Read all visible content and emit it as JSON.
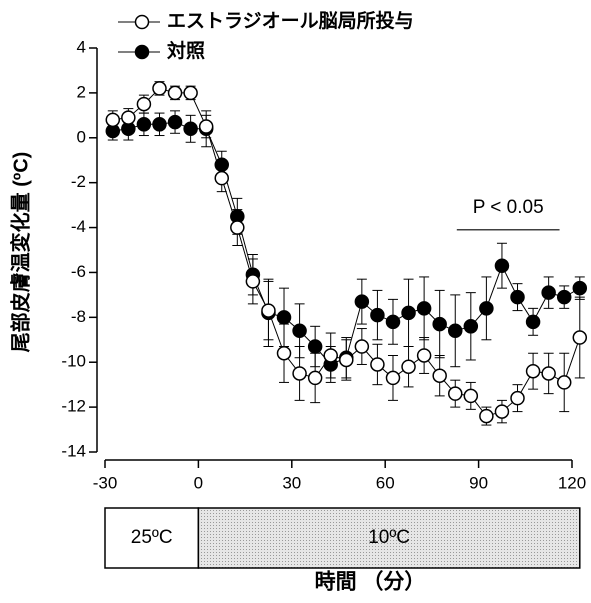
{
  "chart_data": {
    "type": "line",
    "xlabel": "時間 （分）",
    "ylabel": "尾部皮膚温変化量 (ºC)",
    "x": [
      -27.5,
      -22.5,
      -17.5,
      -12.5,
      -7.5,
      -2.5,
      2.5,
      7.5,
      12.5,
      17.5,
      22.5,
      27.5,
      32.5,
      37.5,
      42.5,
      47.5,
      52.5,
      57.5,
      62.5,
      67.5,
      72.5,
      77.5,
      82.5,
      87.5,
      92.5,
      97.5,
      102.5,
      107.5,
      112.5,
      117.5,
      122.5
    ],
    "series": [
      {
        "name": "エストラジオール脳局所投与",
        "color": "#000000",
        "marker_fill": "#ffffff",
        "values": [
          0.8,
          0.9,
          1.5,
          2.2,
          2.0,
          2.0,
          0.5,
          -1.8,
          -4.0,
          -6.4,
          -7.7,
          -9.6,
          -10.5,
          -10.7,
          -9.7,
          -9.9,
          -9.3,
          -10.1,
          -10.7,
          -10.2,
          -9.7,
          -10.6,
          -11.4,
          -11.5,
          -12.4,
          -12.2,
          -11.6,
          -10.4,
          -10.5,
          -10.9,
          -8.9
        ],
        "errors": [
          0.4,
          0.4,
          0.4,
          0.3,
          0.3,
          0.3,
          0.5,
          0.6,
          0.8,
          1.0,
          1.3,
          1.3,
          1.2,
          1.1,
          1.0,
          0.9,
          0.8,
          0.9,
          1.0,
          0.9,
          0.8,
          0.9,
          0.6,
          0.6,
          0.4,
          0.5,
          0.6,
          0.8,
          0.9,
          1.3,
          1.8
        ]
      },
      {
        "name": "対照",
        "color": "#000000",
        "marker_fill": "#000000",
        "values": [
          0.3,
          0.4,
          0.6,
          0.6,
          0.7,
          0.4,
          0.4,
          -1.2,
          -3.5,
          -6.1,
          -7.8,
          -8.0,
          -8.6,
          -9.3,
          -10.1,
          -9.8,
          -7.3,
          -7.9,
          -8.2,
          -7.8,
          -7.6,
          -8.3,
          -8.6,
          -8.4,
          -7.6,
          -5.7,
          -7.1,
          -8.2,
          -6.9,
          -7.1,
          -6.7
        ],
        "errors": [
          0.4,
          0.5,
          0.5,
          0.5,
          0.5,
          0.6,
          0.8,
          0.6,
          0.8,
          0.9,
          1.5,
          1.3,
          1.2,
          0.9,
          0.8,
          0.9,
          1.0,
          1.1,
          1.0,
          1.5,
          1.4,
          1.5,
          1.6,
          1.5,
          1.4,
          1.0,
          0.6,
          0.6,
          0.7,
          0.5,
          0.5
        ]
      }
    ],
    "xlim": [
      -30,
      120
    ],
    "xticks": [
      -30,
      0,
      30,
      60,
      90,
      120
    ],
    "ylim": [
      -14,
      4
    ],
    "yticks": [
      -14,
      -12,
      -10,
      -8,
      -6,
      -4,
      -2,
      0,
      2,
      4
    ],
    "annotation": {
      "text": "P < 0.05",
      "x": [
        83,
        116
      ],
      "y": -4.1
    },
    "conditions": [
      {
        "label": "25ºC",
        "start": -30,
        "end": 0
      },
      {
        "label": "10ºC",
        "start": 0,
        "end": 122.5
      }
    ]
  }
}
